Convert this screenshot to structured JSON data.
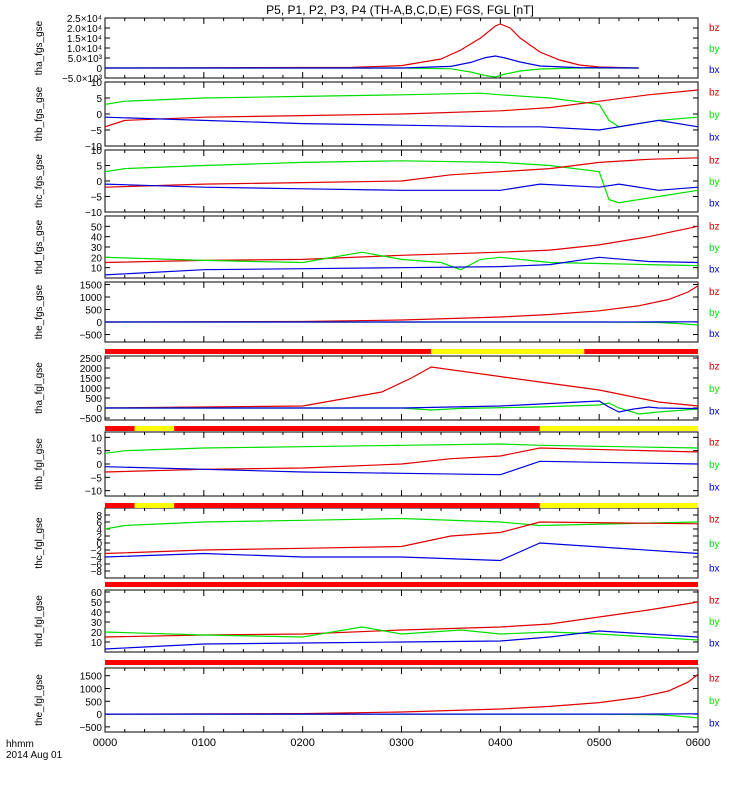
{
  "title": "P5, P1, P2, P3, P4 (TH-A,B,C,D,E) FGS, FGL [nT]",
  "footer": {
    "line1": "hhmm",
    "line2": "2014 Aug 01"
  },
  "colors": {
    "bx": "#0000e0",
    "by": "#00e000",
    "bz": "#e00000",
    "bar_red": "#ff0000",
    "bar_yellow": "#ffff00",
    "bar_black": "#000000"
  },
  "chart_data": [
    {
      "type": "line",
      "ylabel": "tha_fgs_gse",
      "ylim": [
        -5000,
        25000
      ],
      "ytick_labels": [
        "2.5×10⁴",
        "2.0×10⁴",
        "1.5×10⁴",
        "1.0×10⁴",
        "5.0×10³",
        "0",
        "−5.0×10³"
      ],
      "ytick_values": [
        25000,
        20000,
        15000,
        10000,
        5000,
        0,
        -5000
      ],
      "xlim": [
        0,
        600
      ],
      "series": [
        {
          "name": "bz",
          "x": [
            0,
            250,
            300,
            340,
            360,
            380,
            395,
            400,
            410,
            420,
            440,
            460,
            480,
            500,
            540
          ],
          "y": [
            0,
            300,
            1200,
            4500,
            9000,
            15000,
            21000,
            22000,
            20000,
            15000,
            8000,
            4000,
            1500,
            500,
            0
          ]
        },
        {
          "name": "by",
          "x": [
            0,
            300,
            350,
            370,
            385,
            395,
            405,
            420,
            440,
            480,
            540
          ],
          "y": [
            0,
            0,
            -400,
            -2000,
            -3800,
            -4500,
            -3000,
            -1500,
            -500,
            0,
            0
          ]
        },
        {
          "name": "bx",
          "x": [
            0,
            300,
            350,
            370,
            385,
            395,
            405,
            420,
            440,
            480,
            540
          ],
          "y": [
            0,
            0,
            800,
            2800,
            5200,
            6000,
            5000,
            3000,
            1000,
            200,
            0
          ]
        }
      ]
    },
    {
      "type": "line",
      "ylabel": "thb_fgs_gse",
      "ylim": [
        -10,
        10
      ],
      "ytick_labels": [
        "10",
        "5",
        "0",
        "−5",
        "−10"
      ],
      "ytick_values": [
        10,
        5,
        0,
        -5,
        -10
      ],
      "xlim": [
        0,
        600
      ],
      "series": [
        {
          "name": "by",
          "x": [
            0,
            20,
            100,
            200,
            300,
            380,
            400,
            450,
            500,
            510,
            520,
            560,
            600
          ],
          "y": [
            3,
            4,
            5,
            5.5,
            6,
            6.5,
            6,
            5,
            3,
            -2,
            -4,
            -2,
            -1
          ]
        },
        {
          "name": "bz",
          "x": [
            0,
            20,
            100,
            200,
            300,
            400,
            450,
            500,
            550,
            600
          ],
          "y": [
            -4,
            -2,
            -1,
            -0.5,
            0,
            1,
            2,
            4,
            6,
            7.5
          ]
        },
        {
          "name": "bx",
          "x": [
            0,
            100,
            200,
            300,
            400,
            440,
            500,
            560,
            600
          ],
          "y": [
            -1,
            -2,
            -3,
            -3.5,
            -4,
            -4,
            -5,
            -2,
            -4
          ]
        }
      ]
    },
    {
      "type": "line",
      "ylabel": "thc_fgs_gse",
      "ylim": [
        -10,
        10
      ],
      "ytick_labels": [
        "10",
        "5",
        "0",
        "−5",
        "−10"
      ],
      "ytick_values": [
        10,
        5,
        0,
        -5,
        -10
      ],
      "xlim": [
        0,
        600
      ],
      "series": [
        {
          "name": "by",
          "x": [
            0,
            20,
            100,
            200,
            300,
            400,
            450,
            500,
            510,
            520,
            560,
            600
          ],
          "y": [
            3,
            4,
            5,
            6,
            6.5,
            6,
            5,
            3,
            -6,
            -7,
            -5,
            -3
          ]
        },
        {
          "name": "bz",
          "x": [
            0,
            100,
            200,
            300,
            350,
            400,
            450,
            500,
            550,
            600
          ],
          "y": [
            -2,
            -1,
            -0.5,
            0,
            2,
            3,
            4,
            6,
            7,
            7.5
          ]
        },
        {
          "name": "bx",
          "x": [
            0,
            100,
            200,
            300,
            400,
            440,
            500,
            520,
            560,
            600
          ],
          "y": [
            -1,
            -2,
            -2.5,
            -3,
            -3,
            -1,
            -2,
            -1,
            -3,
            -2
          ]
        }
      ]
    },
    {
      "type": "line",
      "ylabel": "thd_fgs_gse",
      "ylim": [
        0,
        60
      ],
      "ytick_labels": [
        "50",
        "40",
        "30",
        "20",
        "10"
      ],
      "ytick_values": [
        50,
        40,
        30,
        20,
        10
      ],
      "xlim": [
        0,
        600
      ],
      "series": [
        {
          "name": "bz",
          "x": [
            0,
            100,
            200,
            300,
            400,
            450,
            500,
            550,
            600
          ],
          "y": [
            15,
            17,
            18,
            22,
            25,
            27,
            32,
            40,
            50
          ]
        },
        {
          "name": "by",
          "x": [
            0,
            100,
            200,
            260,
            300,
            340,
            360,
            380,
            400,
            450,
            500,
            550,
            600
          ],
          "y": [
            20,
            17,
            15,
            25,
            18,
            15,
            8,
            18,
            20,
            15,
            14,
            13,
            12
          ]
        },
        {
          "name": "bx",
          "x": [
            0,
            100,
            200,
            300,
            400,
            450,
            500,
            550,
            600
          ],
          "y": [
            3,
            8,
            9,
            10,
            11,
            13,
            20,
            16,
            15
          ]
        }
      ]
    },
    {
      "type": "line",
      "ylabel": "the_fgs_gse",
      "ylim": [
        -800,
        1600
      ],
      "ytick_labels": [
        "1500",
        "1000",
        "500",
        "0",
        "−500"
      ],
      "ytick_values": [
        1500,
        1000,
        500,
        0,
        -500
      ],
      "xlim": [
        0,
        600
      ],
      "series": [
        {
          "name": "bz",
          "x": [
            0,
            200,
            300,
            400,
            450,
            500,
            540,
            570,
            590,
            600
          ],
          "y": [
            0,
            20,
            80,
            200,
            300,
            450,
            650,
            900,
            1200,
            1450
          ]
        },
        {
          "name": "by",
          "x": [
            0,
            300,
            400,
            500,
            560,
            580,
            600
          ],
          "y": [
            0,
            0,
            0,
            0,
            -20,
            -60,
            -120
          ]
        },
        {
          "name": "bx",
          "x": [
            0,
            300,
            400,
            500,
            560,
            600
          ],
          "y": [
            0,
            0,
            0,
            0,
            5,
            10
          ]
        }
      ]
    },
    {
      "type": "line",
      "ylabel": "tha_fgl_gse",
      "ylim": [
        -600,
        2600
      ],
      "ytick_labels": [
        "2500",
        "2000",
        "1500",
        "1000",
        "500",
        "0",
        "−500"
      ],
      "ytick_values": [
        2500,
        2000,
        1500,
        1000,
        500,
        0,
        -500
      ],
      "xlim": [
        0,
        600
      ],
      "series": [
        {
          "name": "bz",
          "x": [
            0,
            200,
            280,
            310,
            330,
            440,
            500,
            520,
            540,
            560,
            600
          ],
          "y": [
            0,
            100,
            800,
            1500,
            2050,
            1300,
            900,
            700,
            500,
            300,
            100
          ]
        },
        {
          "name": "by",
          "x": [
            0,
            300,
            330,
            360,
            440,
            500,
            510,
            520,
            540,
            560,
            600
          ],
          "y": [
            0,
            0,
            -100,
            -20,
            50,
            150,
            250,
            0,
            -300,
            -200,
            -50
          ]
        },
        {
          "name": "bx",
          "x": [
            0,
            300,
            400,
            500,
            510,
            520,
            535,
            550,
            560,
            600
          ],
          "y": [
            0,
            0,
            100,
            350,
            50,
            -200,
            -50,
            50,
            0,
            -30
          ]
        }
      ]
    },
    {
      "type": "line",
      "ylabel": "thb_fgl_gse",
      "ylim": [
        -12,
        12
      ],
      "ytick_labels": [
        "10",
        "5",
        "0",
        "−5",
        "−10"
      ],
      "ytick_values": [
        10,
        5,
        0,
        -5,
        -10
      ],
      "xlim": [
        0,
        600
      ],
      "series": [
        {
          "name": "by",
          "x": [
            0,
            20,
            100,
            200,
            300,
            400,
            440,
            600
          ],
          "y": [
            4,
            5,
            6,
            6.5,
            7,
            7.5,
            7,
            6
          ]
        },
        {
          "name": "bz",
          "x": [
            0,
            100,
            200,
            300,
            350,
            400,
            440,
            600
          ],
          "y": [
            -3,
            -2,
            -1.5,
            0,
            2,
            3,
            6,
            4.5
          ]
        },
        {
          "name": "bx",
          "x": [
            0,
            100,
            200,
            300,
            400,
            440,
            600
          ],
          "y": [
            -1,
            -2,
            -3,
            -3.5,
            -4,
            1,
            0
          ]
        }
      ]
    },
    {
      "type": "line",
      "ylabel": "thc_fgl_gse",
      "ylim": [
        -10,
        10
      ],
      "ytick_labels": [
        "8",
        "6",
        "4",
        "2",
        "0",
        "−2",
        "−4",
        "−6",
        "−8"
      ],
      "ytick_values": [
        8,
        6,
        4,
        2,
        0,
        -2,
        -4,
        -6,
        -8
      ],
      "xlim": [
        0,
        600
      ],
      "series": [
        {
          "name": "by",
          "x": [
            0,
            20,
            100,
            200,
            300,
            400,
            440,
            600
          ],
          "y": [
            4,
            5,
            6,
            6.5,
            7,
            6,
            5,
            6
          ]
        },
        {
          "name": "bz",
          "x": [
            0,
            100,
            200,
            300,
            350,
            400,
            440,
            600
          ],
          "y": [
            -3,
            -2,
            -1.5,
            -1,
            2,
            3,
            6,
            5.5
          ]
        },
        {
          "name": "bx",
          "x": [
            0,
            100,
            200,
            300,
            400,
            440,
            600
          ],
          "y": [
            -4,
            -3,
            -4,
            -4,
            -5,
            0,
            -3
          ]
        }
      ]
    },
    {
      "type": "line",
      "ylabel": "thd_fgl_gse",
      "ylim": [
        0,
        62
      ],
      "ytick_labels": [
        "60",
        "50",
        "40",
        "30",
        "20",
        "10"
      ],
      "ytick_values": [
        60,
        50,
        40,
        30,
        20,
        10
      ],
      "xlim": [
        0,
        600
      ],
      "series": [
        {
          "name": "bz",
          "x": [
            0,
            100,
            200,
            300,
            400,
            450,
            500,
            550,
            600
          ],
          "y": [
            15,
            17,
            18,
            22,
            25,
            28,
            35,
            42,
            50
          ]
        },
        {
          "name": "by",
          "x": [
            0,
            100,
            200,
            260,
            300,
            360,
            400,
            450,
            500,
            550,
            600
          ],
          "y": [
            20,
            17,
            15,
            25,
            18,
            22,
            18,
            20,
            18,
            15,
            12
          ]
        },
        {
          "name": "bx",
          "x": [
            0,
            100,
            200,
            300,
            400,
            450,
            500,
            550,
            600
          ],
          "y": [
            3,
            8,
            9,
            10,
            11,
            15,
            21,
            18,
            15
          ]
        }
      ]
    },
    {
      "type": "line",
      "ylabel": "the_fgl_gse",
      "ylim": [
        -700,
        1800
      ],
      "ytick_labels": [
        "1500",
        "1000",
        "500",
        "0",
        "−500"
      ],
      "ytick_values": [
        1500,
        1000,
        500,
        0,
        -500
      ],
      "xlim": [
        0,
        600
      ],
      "series": [
        {
          "name": "bz",
          "x": [
            0,
            200,
            300,
            400,
            450,
            500,
            540,
            570,
            590,
            600
          ],
          "y": [
            0,
            20,
            80,
            200,
            300,
            450,
            650,
            900,
            1250,
            1550
          ]
        },
        {
          "name": "by",
          "x": [
            0,
            300,
            400,
            500,
            560,
            580,
            600
          ],
          "y": [
            0,
            0,
            0,
            0,
            -30,
            -80,
            -150
          ]
        },
        {
          "name": "bx",
          "x": [
            0,
            300,
            400,
            500,
            560,
            600
          ],
          "y": [
            0,
            0,
            0,
            0,
            5,
            10
          ]
        }
      ]
    }
  ],
  "legend_labels": {
    "bz": "bz",
    "by": "by",
    "bx": "bx"
  },
  "x_ticks": {
    "values": [
      0,
      100,
      200,
      300,
      400,
      500,
      600
    ],
    "labels": [
      "0000",
      "0100",
      "0200",
      "0300",
      "0400",
      "0500",
      "0600"
    ]
  },
  "status_bars": [
    {
      "after_panel": 4,
      "segments": [
        {
          "from": 0,
          "to": 330,
          "color": "red"
        },
        {
          "from": 330,
          "to": 485,
          "color": "yellow"
        },
        {
          "from": 485,
          "to": 600,
          "color": "red"
        }
      ]
    },
    {
      "after_panel": 5,
      "segments": [
        {
          "from": 0,
          "to": 30,
          "color": "red"
        },
        {
          "from": 30,
          "to": 70,
          "color": "yellow"
        },
        {
          "from": 70,
          "to": 440,
          "color": "red"
        },
        {
          "from": 440,
          "to": 600,
          "color": "yellow"
        }
      ]
    },
    {
      "after_panel": 6,
      "segments": [
        {
          "from": 0,
          "to": 30,
          "color": "red"
        },
        {
          "from": 30,
          "to": 70,
          "color": "yellow"
        },
        {
          "from": 70,
          "to": 440,
          "color": "red"
        },
        {
          "from": 440,
          "to": 600,
          "color": "yellow"
        }
      ]
    },
    {
      "after_panel": 7,
      "segments": [
        {
          "from": 0,
          "to": 600,
          "color": "red"
        }
      ]
    },
    {
      "after_panel": 8,
      "segments": [
        {
          "from": 0,
          "to": 600,
          "color": "red"
        }
      ]
    }
  ]
}
